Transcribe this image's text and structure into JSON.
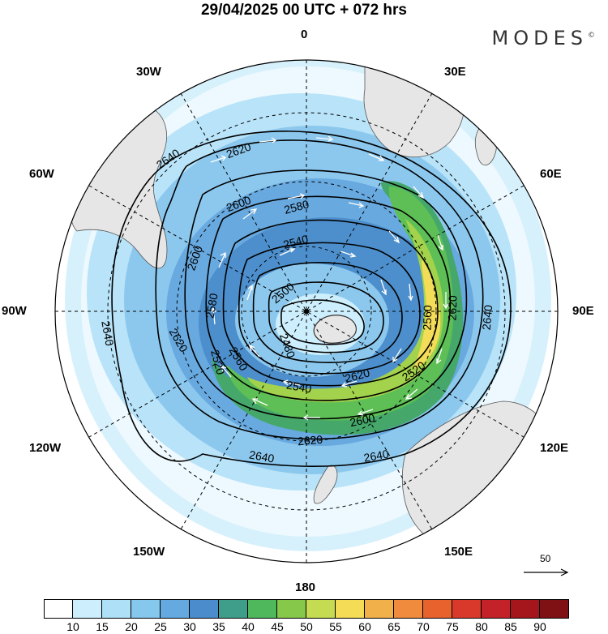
{
  "header": {
    "title": "29/04/2025  00 UTC  + 072 hrs",
    "brand": "MODES",
    "brand_mark": "©"
  },
  "map": {
    "projection": "south-polar-stereographic",
    "meridian_labels": [
      "0",
      "30E",
      "60E",
      "90E",
      "120E",
      "150E",
      "180",
      "150W",
      "120W",
      "90W",
      "60W",
      "30W"
    ],
    "contour_labels": [
      "2640",
      "2620",
      "2600",
      "2580",
      "2560",
      "2540",
      "2520",
      "2500",
      "2480"
    ],
    "reference_vector": "50",
    "colors": {
      "land": "#e6e6e6",
      "contour": "#000000",
      "wind_arrow": "#ffffff"
    }
  },
  "colorbar": {
    "ticks": [
      "10",
      "15",
      "20",
      "25",
      "30",
      "35",
      "40",
      "45",
      "50",
      "55",
      "60",
      "65",
      "70",
      "75",
      "80",
      "85",
      "90"
    ],
    "colors": [
      "#ffffff",
      "#cdeffd",
      "#aee0f7",
      "#86c7ee",
      "#64a9e0",
      "#4a8ccc",
      "#3f9e8a",
      "#4fb85c",
      "#86c84a",
      "#c5dc52",
      "#f4dc56",
      "#f2b04a",
      "#f08a3c",
      "#e8622e",
      "#d8392a",
      "#c22228",
      "#a5161c",
      "#7f1014"
    ]
  }
}
